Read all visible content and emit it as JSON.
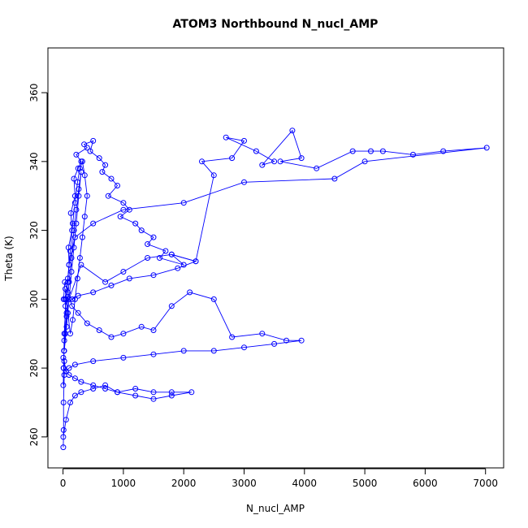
{
  "chart_data": {
    "type": "line",
    "title": "ATOM3 Northbound N_nucl_AMP",
    "xlabel": "N_nucl_AMP",
    "ylabel": "Theta (K)",
    "xlim": [
      -250,
      7300
    ],
    "ylim": [
      251,
      373
    ],
    "xticks": [
      0,
      1000,
      2000,
      3000,
      4000,
      5000,
      6000,
      7000
    ],
    "yticks": [
      260,
      280,
      300,
      320,
      340,
      360
    ],
    "markers": "open-circle",
    "line_color": "#0000ff",
    "grid": false,
    "series": [
      {
        "x": [
          5,
          10,
          8,
          20,
          15,
          40,
          60,
          30,
          80,
          100,
          90,
          150,
          130,
          200,
          180,
          250,
          300,
          220,
          400,
          350,
          500,
          450,
          600,
          700,
          650,
          800,
          900,
          750,
          1000,
          1100,
          950,
          1200,
          1300,
          1500,
          1400,
          1700,
          1600,
          2000,
          1800,
          2200,
          2500,
          2300,
          2800,
          3000,
          2700,
          3200,
          3500,
          3300,
          3800,
          3950,
          3600,
          4200,
          4800,
          5100,
          5300,
          5800,
          6300,
          7020,
          5000,
          4500,
          3000,
          2000,
          1000,
          500,
          200,
          100,
          50,
          20,
          10,
          5
        ],
        "y": [
          257,
          262,
          270,
          278,
          285,
          290,
          295,
          300,
          305,
          310,
          315,
          320,
          325,
          330,
          335,
          338,
          340,
          342,
          344,
          345,
          346,
          343,
          341,
          339,
          337,
          335,
          333,
          330,
          328,
          326,
          324,
          322,
          320,
          318,
          316,
          314,
          312,
          310,
          313,
          311,
          336,
          340,
          341,
          346,
          347,
          343,
          340,
          339,
          349,
          341,
          340,
          338,
          343,
          343,
          343,
          342,
          343,
          344,
          340,
          335,
          334,
          328,
          326,
          322,
          318,
          310,
          300,
          290,
          280,
          275
        ]
      },
      {
        "x": [
          10,
          30,
          80,
          150,
          250,
          400,
          600,
          800,
          1000,
          1300,
          1500,
          1800,
          2100,
          2500,
          2800,
          3300,
          3700,
          3950,
          3500,
          3000,
          2500,
          2000,
          1500,
          1000,
          500,
          200,
          100,
          50,
          20,
          5
        ],
        "y": [
          300,
          305,
          302,
          298,
          296,
          293,
          291,
          289,
          290,
          292,
          291,
          298,
          302,
          300,
          289,
          290,
          288,
          288,
          287,
          286,
          285,
          285,
          284,
          283,
          282,
          281,
          280,
          279,
          282,
          283
        ]
      },
      {
        "x": [
          5,
          50,
          120,
          200,
          300,
          500,
          700,
          900,
          1200,
          1500,
          1800,
          2130,
          1800,
          1500,
          1200,
          900,
          700,
          500,
          300,
          200,
          100,
          50,
          10
        ],
        "y": [
          260,
          265,
          270,
          272,
          273,
          274,
          275,
          273,
          274,
          273,
          273,
          273,
          272,
          271,
          272,
          273,
          274,
          275,
          276,
          277,
          278,
          279,
          280
        ]
      },
      {
        "x": [
          20,
          60,
          100,
          140,
          180,
          220,
          260,
          300,
          260,
          220,
          180,
          140,
          100,
          60,
          20,
          40,
          80,
          120,
          160,
          200,
          240,
          280,
          320,
          360,
          400,
          360,
          320,
          280,
          240,
          200,
          160,
          120,
          80,
          40
        ],
        "y": [
          285,
          292,
          300,
          308,
          315,
          322,
          330,
          337,
          332,
          326,
          320,
          312,
          305,
          296,
          288,
          298,
          306,
          314,
          322,
          328,
          334,
          338,
          340,
          336,
          330,
          324,
          318,
          312,
          306,
          300,
          294,
          290,
          296,
          303
        ]
      },
      {
        "x": [
          100,
          300,
          700,
          1000,
          1400,
          1800,
          2200,
          1900,
          1500,
          1100,
          800,
          500,
          250,
          150
        ],
        "y": [
          300,
          310,
          305,
          308,
          312,
          313,
          311,
          309,
          307,
          306,
          304,
          302,
          301,
          300
        ]
      }
    ]
  }
}
